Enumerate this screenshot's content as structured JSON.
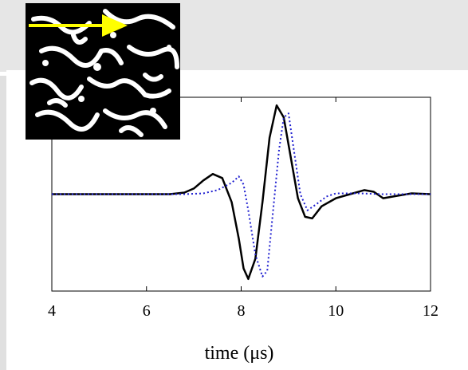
{
  "chart_data": {
    "type": "line",
    "xlabel": "time (μs)",
    "ylabel": "",
    "xlim": [
      4,
      12
    ],
    "ylim": [
      -1.2,
      1.2
    ],
    "xticks": [
      "4",
      "6",
      "8",
      "10",
      "12"
    ],
    "grid": false,
    "series": [
      {
        "style": "solid",
        "color": "#000000",
        "x": [
          4,
          6.5,
          6.8,
          7.0,
          7.2,
          7.4,
          7.6,
          7.8,
          7.95,
          8.05,
          8.15,
          8.3,
          8.45,
          8.6,
          8.75,
          8.9,
          9.05,
          9.2,
          9.35,
          9.5,
          9.7,
          10.0,
          10.3,
          10.6,
          10.8,
          11.0,
          11.3,
          11.6,
          12
        ],
        "y": [
          0,
          0,
          0.02,
          0.07,
          0.17,
          0.25,
          0.2,
          -0.1,
          -0.55,
          -0.92,
          -1.05,
          -0.8,
          -0.1,
          0.7,
          1.1,
          0.95,
          0.45,
          -0.05,
          -0.28,
          -0.3,
          -0.15,
          -0.05,
          0.0,
          0.05,
          0.03,
          -0.05,
          -0.02,
          0.01,
          0
        ]
      },
      {
        "style": "dotted",
        "color": "#1f1fd0",
        "x": [
          4,
          6.8,
          7.2,
          7.5,
          7.8,
          7.95,
          8.05,
          8.15,
          8.3,
          8.45,
          8.55,
          8.65,
          8.8,
          8.9,
          9.0,
          9.1,
          9.25,
          9.4,
          9.6,
          9.8,
          10.0,
          10.5,
          11.0,
          11.5,
          12
        ],
        "y": [
          0,
          0,
          0.01,
          0.05,
          0.14,
          0.22,
          0.12,
          -0.2,
          -0.75,
          -1.02,
          -0.95,
          -0.35,
          0.55,
          0.95,
          1.0,
          0.6,
          0.0,
          -0.2,
          -0.12,
          -0.03,
          0.01,
          0.01,
          0.0,
          0.0,
          0
        ]
      }
    ]
  },
  "inset": {
    "label": "microstructure image with propagation direction arrow",
    "arrow_color": "#ffff00"
  }
}
